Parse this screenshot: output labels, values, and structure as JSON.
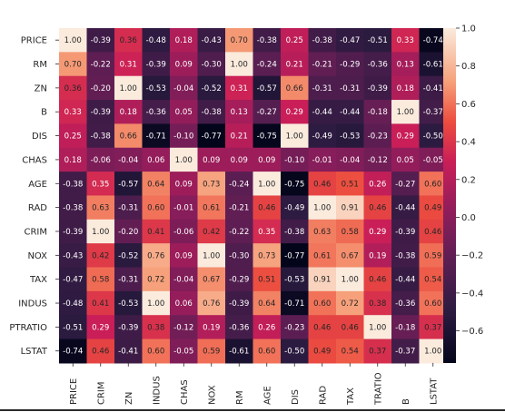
{
  "chart_data": {
    "type": "heatmap",
    "row_labels": [
      "PRICE",
      "RM",
      "ZN",
      "B",
      "DIS",
      "CHAS",
      "AGE",
      "RAD",
      "CRIM",
      "NOX",
      "TAX",
      "INDUS",
      "PTRATIO",
      "LSTAT"
    ],
    "col_labels": [
      "PRICE",
      "CRIM",
      "ZN",
      "INDUS",
      "CHAS",
      "NOX",
      "RM",
      "AGE",
      "DIS",
      "RAD",
      "TAX",
      "PTRATIO",
      "B",
      "LSTAT"
    ],
    "col_labels_display": [
      "PRICE",
      "CRIM",
      "ZN",
      "INDUS",
      "CHAS",
      "NOX",
      "RM",
      "AGE",
      "DIS",
      "RAD",
      "TAX",
      "TRATIO",
      "B",
      "LSTAT"
    ],
    "values": [
      [
        "1.00",
        "-0.39",
        "0.36",
        "-0.48",
        "0.18",
        "-0.43",
        "0.70",
        "-0.38",
        "0.25",
        "-0.38",
        "-0.47",
        "-0.51",
        "0.33",
        "-0.74"
      ],
      [
        "0.70",
        "-0.22",
        "0.31",
        "-0.39",
        "0.09",
        "-0.30",
        "1.00",
        "-0.24",
        "0.21",
        "-0.21",
        "-0.29",
        "-0.36",
        "0.13",
        "-0.61"
      ],
      [
        "0.36",
        "-0.20",
        "1.00",
        "-0.53",
        "-0.04",
        "-0.52",
        "0.31",
        "-0.57",
        "0.66",
        "-0.31",
        "-0.31",
        "-0.39",
        "0.18",
        "-0.41"
      ],
      [
        "0.33",
        "-0.39",
        "0.18",
        "-0.36",
        "0.05",
        "-0.38",
        "0.13",
        "-0.27",
        "0.29",
        "-0.44",
        "-0.44",
        "-0.18",
        "1.00",
        "-0.37"
      ],
      [
        "0.25",
        "-0.38",
        "0.66",
        "-0.71",
        "-0.10",
        "-0.77",
        "0.21",
        "-0.75",
        "1.00",
        "-0.49",
        "-0.53",
        "-0.23",
        "0.29",
        "-0.50"
      ],
      [
        "0.18",
        "-0.06",
        "-0.04",
        "0.06",
        "1.00",
        "0.09",
        "0.09",
        "0.09",
        "-0.10",
        "-0.01",
        "-0.04",
        "-0.12",
        "0.05",
        "-0.05"
      ],
      [
        "-0.38",
        "0.35",
        "-0.57",
        "0.64",
        "0.09",
        "0.73",
        "-0.24",
        "1.00",
        "-0.75",
        "0.46",
        "0.51",
        "0.26",
        "-0.27",
        "0.60"
      ],
      [
        "-0.38",
        "0.63",
        "-0.31",
        "0.60",
        "-0.01",
        "0.61",
        "-0.21",
        "0.46",
        "-0.49",
        "1.00",
        "0.91",
        "0.46",
        "-0.44",
        "0.49"
      ],
      [
        "-0.39",
        "1.00",
        "-0.20",
        "0.41",
        "-0.06",
        "0.42",
        "-0.22",
        "0.35",
        "-0.38",
        "0.63",
        "0.58",
        "0.29",
        "-0.39",
        "0.46"
      ],
      [
        "-0.43",
        "0.42",
        "-0.52",
        "0.76",
        "0.09",
        "1.00",
        "-0.30",
        "0.73",
        "-0.77",
        "0.61",
        "0.67",
        "0.19",
        "-0.38",
        "0.59"
      ],
      [
        "-0.47",
        "0.58",
        "-0.31",
        "0.72",
        "-0.04",
        "0.67",
        "-0.29",
        "0.51",
        "-0.53",
        "0.91",
        "1.00",
        "0.46",
        "-0.44",
        "0.54"
      ],
      [
        "-0.48",
        "0.41",
        "-0.53",
        "1.00",
        "0.06",
        "0.76",
        "-0.39",
        "0.64",
        "-0.71",
        "0.60",
        "0.72",
        "0.38",
        "-0.36",
        "0.60"
      ],
      [
        "-0.51",
        "0.29",
        "-0.39",
        "0.38",
        "-0.12",
        "0.19",
        "-0.36",
        "0.26",
        "-0.23",
        "0.46",
        "0.46",
        "1.00",
        "-0.18",
        "0.37"
      ],
      [
        "-0.74",
        "0.46",
        "-0.41",
        "0.60",
        "-0.05",
        "0.59",
        "-0.61",
        "0.60",
        "-0.50",
        "0.49",
        "0.54",
        "0.37",
        "-0.37",
        "1.00"
      ]
    ],
    "colorbar": {
      "colormap": "rocket",
      "range": [
        -0.77,
        1.0
      ],
      "ticks": [
        "1.0",
        "0.8",
        "0.6",
        "0.4",
        "0.2",
        "0.0",
        "−0.2",
        "−0.4",
        "−0.6"
      ]
    },
    "annotations": true,
    "grid": false
  }
}
